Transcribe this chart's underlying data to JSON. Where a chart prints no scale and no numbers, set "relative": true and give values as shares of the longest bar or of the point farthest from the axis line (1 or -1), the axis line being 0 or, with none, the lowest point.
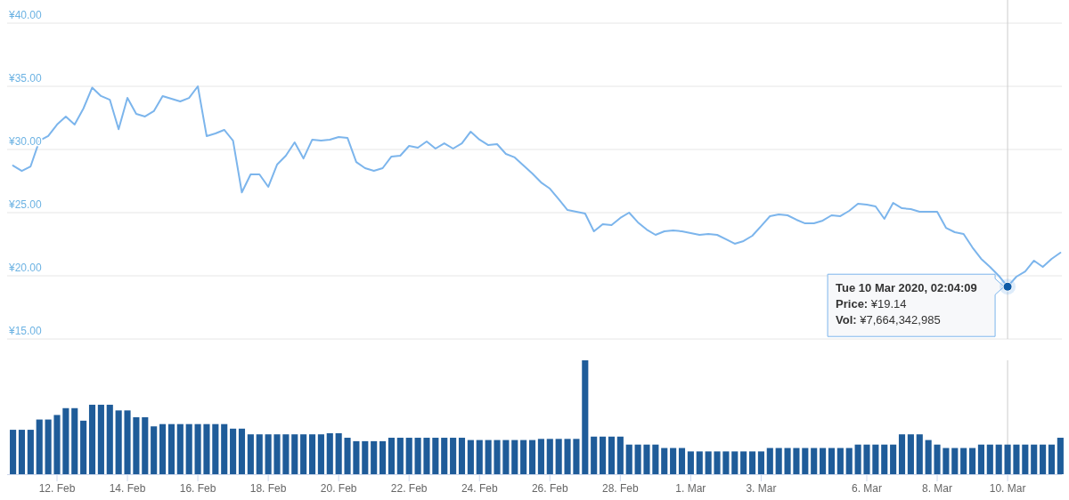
{
  "chart_data": [
    {
      "type": "line",
      "xlim": [
        "2020-02-10T14:00",
        "2020-03-11T13:00"
      ],
      "ylim": [
        15,
        40
      ],
      "yticks": [
        {
          "value": 15,
          "label": "¥15.00"
        },
        {
          "value": 20,
          "label": "¥20.00"
        },
        {
          "value": 25,
          "label": "¥25.00"
        },
        {
          "value": 30,
          "label": "¥30.00"
        },
        {
          "value": 35,
          "label": "¥35.00"
        },
        {
          "value": 40,
          "label": "¥40.00"
        }
      ],
      "tick_labels": "y",
      "grid": "y",
      "x": [
        "2020-02-10T18:00",
        "2020-02-11T00:00",
        "2020-02-11T06:00",
        "2020-02-11T12:00",
        "2020-02-11T18:00",
        "2020-02-12T00:00",
        "2020-02-12T06:00",
        "2020-02-12T12:00",
        "2020-02-12T18:00",
        "2020-02-13T00:00",
        "2020-02-13T06:00",
        "2020-02-13T12:00",
        "2020-02-13T18:00",
        "2020-02-14T00:00",
        "2020-02-14T06:00",
        "2020-02-14T12:00",
        "2020-02-14T18:00",
        "2020-02-15T00:00",
        "2020-02-15T06:00",
        "2020-02-15T12:00",
        "2020-02-15T18:00",
        "2020-02-16T00:00",
        "2020-02-16T06:00",
        "2020-02-16T12:00",
        "2020-02-16T18:00",
        "2020-02-17T00:00",
        "2020-02-17T06:00",
        "2020-02-17T12:00",
        "2020-02-17T18:00",
        "2020-02-18T00:00",
        "2020-02-18T06:00",
        "2020-02-18T12:00",
        "2020-02-18T18:00",
        "2020-02-19T00:00",
        "2020-02-19T06:00",
        "2020-02-19T12:00",
        "2020-02-19T18:00",
        "2020-02-20T00:00",
        "2020-02-20T06:00",
        "2020-02-20T12:00",
        "2020-02-20T18:00",
        "2020-02-21T00:00",
        "2020-02-21T06:00",
        "2020-02-21T12:00",
        "2020-02-21T18:00",
        "2020-02-22T00:00",
        "2020-02-22T06:00",
        "2020-02-22T12:00",
        "2020-02-22T18:00",
        "2020-02-23T00:00",
        "2020-02-23T06:00",
        "2020-02-23T12:00",
        "2020-02-23T18:00",
        "2020-02-24T00:00",
        "2020-02-24T06:00",
        "2020-02-24T12:00",
        "2020-02-24T18:00",
        "2020-02-25T00:00",
        "2020-02-25T06:00",
        "2020-02-25T12:00",
        "2020-02-25T18:00",
        "2020-02-26T00:00",
        "2020-02-26T06:00",
        "2020-02-26T12:00",
        "2020-02-26T18:00",
        "2020-02-27T00:00",
        "2020-02-27T06:00",
        "2020-02-27T12:00",
        "2020-02-27T18:00",
        "2020-02-28T00:00",
        "2020-02-28T06:00",
        "2020-02-28T12:00",
        "2020-02-28T18:00",
        "2020-02-29T00:00",
        "2020-02-29T06:00",
        "2020-02-29T12:00",
        "2020-02-29T18:00",
        "2020-03-01T00:00",
        "2020-03-01T06:00",
        "2020-03-01T12:00",
        "2020-03-01T18:00",
        "2020-03-02T00:00",
        "2020-03-02T06:00",
        "2020-03-02T12:00",
        "2020-03-02T18:00",
        "2020-03-03T00:00",
        "2020-03-03T06:00",
        "2020-03-03T12:00",
        "2020-03-03T18:00",
        "2020-03-04T00:00",
        "2020-03-04T06:00",
        "2020-03-04T12:00",
        "2020-03-04T18:00",
        "2020-03-05T00:00",
        "2020-03-05T06:00",
        "2020-03-05T12:00",
        "2020-03-05T18:00",
        "2020-03-06T00:00",
        "2020-03-06T06:00",
        "2020-03-06T12:00",
        "2020-03-06T18:00",
        "2020-03-07T00:00",
        "2020-03-07T06:00",
        "2020-03-07T12:00",
        "2020-03-07T18:00",
        "2020-03-08T00:00",
        "2020-03-08T06:00",
        "2020-03-08T12:00",
        "2020-03-08T18:00",
        "2020-03-09T00:00",
        "2020-03-09T06:00",
        "2020-03-09T12:00",
        "2020-03-09T18:00",
        "2020-03-10T00:00",
        "2020-03-10T06:00",
        "2020-03-10T12:00",
        "2020-03-10T18:00",
        "2020-03-11T00:00",
        "2020-03-11T06:00",
        "2020-03-11T12:00"
      ],
      "series": [
        {
          "color": "#7cb5ec",
          "values": [
            28.73,
            28.3,
            28.66,
            30.7,
            31.06,
            31.97,
            32.61,
            31.97,
            33.24,
            34.9,
            34.23,
            33.94,
            31.6,
            34.08,
            32.82,
            32.61,
            33.03,
            34.23,
            34.01,
            33.8,
            34.08,
            35.0,
            31.06,
            31.27,
            31.55,
            30.7,
            26.6,
            28.03,
            28.03,
            27.04,
            28.8,
            29.51,
            30.56,
            29.29,
            30.78,
            30.7,
            30.78,
            30.99,
            30.92,
            29.01,
            28.52,
            28.31,
            28.52,
            29.44,
            29.51,
            30.28,
            30.14,
            30.63,
            30.07,
            30.49,
            30.07,
            30.49,
            31.41,
            30.78,
            30.35,
            30.42,
            29.65,
            29.37,
            28.73,
            28.1,
            27.39,
            26.9,
            26.06,
            25.21,
            25.07,
            24.93,
            23.52,
            24.08,
            24.01,
            24.58,
            25.0,
            24.23,
            23.66,
            23.24,
            23.52,
            23.59,
            23.52,
            23.38,
            23.24,
            23.31,
            23.24,
            22.89,
            22.54,
            22.75,
            23.17,
            23.94,
            24.72,
            24.86,
            24.79,
            24.44,
            24.15,
            24.15,
            24.37,
            24.79,
            24.72,
            25.14,
            25.7,
            25.63,
            25.49,
            24.51,
            25.77,
            25.35,
            25.28,
            25.07,
            25.07,
            25.07,
            23.8,
            23.45,
            23.31,
            22.25,
            21.34,
            20.7,
            20.0,
            19.14,
            19.93,
            20.35,
            21.2,
            20.7,
            21.34,
            21.83
          ]
        }
      ],
      "ref_lines": [
        {
          "axis": "x",
          "value": "2020-03-10T00:00",
          "color": "#cccccc"
        }
      ],
      "annotations": [
        {
          "text": "Tue 10 Mar 2020, 02:04:09",
          "x": "2020-03-10T00:00",
          "y": 19.14
        },
        "Price: ¥19.14",
        "Vol: ¥7,664,342,985"
      ]
    },
    {
      "type": "bar",
      "relative": true,
      "xlim": [
        "2020-02-10T14:00",
        "2020-03-11T13:00"
      ],
      "xticks": [
        {
          "value": "2020-02-12",
          "label": "12. Feb"
        },
        {
          "value": "2020-02-14",
          "label": "14. Feb"
        },
        {
          "value": "2020-02-16",
          "label": "16. Feb"
        },
        {
          "value": "2020-02-18",
          "label": "18. Feb"
        },
        {
          "value": "2020-02-20",
          "label": "20. Feb"
        },
        {
          "value": "2020-02-22",
          "label": "22. Feb"
        },
        {
          "value": "2020-02-24",
          "label": "24. Feb"
        },
        {
          "value": "2020-02-26",
          "label": "26. Feb"
        },
        {
          "value": "2020-02-28",
          "label": "28. Feb"
        },
        {
          "value": "2020-03-01",
          "label": "1. Mar"
        },
        {
          "value": "2020-03-03",
          "label": "3. Mar"
        },
        {
          "value": "2020-03-06",
          "label": "6. Mar"
        },
        {
          "value": "2020-03-08",
          "label": "8. Mar"
        },
        {
          "value": "2020-03-10",
          "label": "10. Mar"
        }
      ],
      "x": [
        "2020-02-10T18:00",
        "2020-02-11T00:00",
        "2020-02-11T06:00",
        "2020-02-11T12:00",
        "2020-02-11T18:00",
        "2020-02-12T00:00",
        "2020-02-12T06:00",
        "2020-02-12T12:00",
        "2020-02-12T18:00",
        "2020-02-13T00:00",
        "2020-02-13T06:00",
        "2020-02-13T12:00",
        "2020-02-13T18:00",
        "2020-02-14T00:00",
        "2020-02-14T06:00",
        "2020-02-14T12:00",
        "2020-02-14T18:00",
        "2020-02-15T00:00",
        "2020-02-15T06:00",
        "2020-02-15T12:00",
        "2020-02-15T18:00",
        "2020-02-16T00:00",
        "2020-02-16T06:00",
        "2020-02-16T12:00",
        "2020-02-16T18:00",
        "2020-02-17T00:00",
        "2020-02-17T06:00",
        "2020-02-17T12:00",
        "2020-02-17T18:00",
        "2020-02-18T00:00",
        "2020-02-18T06:00",
        "2020-02-18T12:00",
        "2020-02-18T18:00",
        "2020-02-19T00:00",
        "2020-02-19T06:00",
        "2020-02-19T12:00",
        "2020-02-19T18:00",
        "2020-02-20T00:00",
        "2020-02-20T06:00",
        "2020-02-20T12:00",
        "2020-02-20T18:00",
        "2020-02-21T00:00",
        "2020-02-21T06:00",
        "2020-02-21T12:00",
        "2020-02-21T18:00",
        "2020-02-22T00:00",
        "2020-02-22T06:00",
        "2020-02-22T12:00",
        "2020-02-22T18:00",
        "2020-02-23T00:00",
        "2020-02-23T06:00",
        "2020-02-23T12:00",
        "2020-02-23T18:00",
        "2020-02-24T00:00",
        "2020-02-24T06:00",
        "2020-02-24T12:00",
        "2020-02-24T18:00",
        "2020-02-25T00:00",
        "2020-02-25T06:00",
        "2020-02-25T12:00",
        "2020-02-25T18:00",
        "2020-02-26T00:00",
        "2020-02-26T06:00",
        "2020-02-26T12:00",
        "2020-02-26T18:00",
        "2020-02-27T00:00",
        "2020-02-27T06:00",
        "2020-02-27T12:00",
        "2020-02-27T18:00",
        "2020-02-28T00:00",
        "2020-02-28T06:00",
        "2020-02-28T12:00",
        "2020-02-28T18:00",
        "2020-02-29T00:00",
        "2020-02-29T06:00",
        "2020-02-29T12:00",
        "2020-02-29T18:00",
        "2020-03-01T00:00",
        "2020-03-01T06:00",
        "2020-03-01T12:00",
        "2020-03-01T18:00",
        "2020-03-02T00:00",
        "2020-03-02T06:00",
        "2020-03-02T12:00",
        "2020-03-02T18:00",
        "2020-03-03T00:00",
        "2020-03-03T06:00",
        "2020-03-03T12:00",
        "2020-03-03T18:00",
        "2020-03-04T00:00",
        "2020-03-04T06:00",
        "2020-03-04T12:00",
        "2020-03-04T18:00",
        "2020-03-05T00:00",
        "2020-03-05T06:00",
        "2020-03-05T12:00",
        "2020-03-05T18:00",
        "2020-03-06T00:00",
        "2020-03-06T06:00",
        "2020-03-06T12:00",
        "2020-03-06T18:00",
        "2020-03-07T00:00",
        "2020-03-07T06:00",
        "2020-03-07T12:00",
        "2020-03-07T18:00",
        "2020-03-08T00:00",
        "2020-03-08T06:00",
        "2020-03-08T12:00",
        "2020-03-08T18:00",
        "2020-03-09T00:00",
        "2020-03-09T06:00",
        "2020-03-09T12:00",
        "2020-03-09T18:00",
        "2020-03-10T00:00",
        "2020-03-10T06:00",
        "2020-03-10T12:00",
        "2020-03-10T18:00",
        "2020-03-11T00:00",
        "2020-03-11T06:00",
        "2020-03-11T12:00"
      ],
      "series": [
        {
          "color": "#1f5c99",
          "values": [
            0.39,
            0.39,
            0.39,
            0.48,
            0.48,
            0.52,
            0.58,
            0.58,
            0.47,
            0.61,
            0.61,
            0.61,
            0.56,
            0.56,
            0.5,
            0.5,
            0.42,
            0.44,
            0.44,
            0.44,
            0.44,
            0.44,
            0.44,
            0.44,
            0.44,
            0.4,
            0.4,
            0.35,
            0.35,
            0.35,
            0.35,
            0.35,
            0.35,
            0.35,
            0.35,
            0.35,
            0.36,
            0.36,
            0.32,
            0.29,
            0.29,
            0.29,
            0.29,
            0.32,
            0.32,
            0.32,
            0.32,
            0.32,
            0.32,
            0.32,
            0.32,
            0.32,
            0.3,
            0.3,
            0.3,
            0.3,
            0.3,
            0.3,
            0.3,
            0.3,
            0.31,
            0.31,
            0.31,
            0.31,
            0.31,
            1,
            0.33,
            0.33,
            0.33,
            0.33,
            0.26,
            0.26,
            0.26,
            0.26,
            0.23,
            0.23,
            0.23,
            0.2,
            0.2,
            0.2,
            0.2,
            0.2,
            0.2,
            0.2,
            0.2,
            0.2,
            0.23,
            0.23,
            0.23,
            0.23,
            0.23,
            0.23,
            0.23,
            0.23,
            0.23,
            0.23,
            0.26,
            0.26,
            0.26,
            0.26,
            0.26,
            0.35,
            0.35,
            0.35,
            0.3,
            0.26,
            0.23,
            0.23,
            0.23,
            0.23,
            0.26,
            0.26,
            0.26,
            0.26,
            0.26,
            0.26,
            0.26,
            0.26,
            0.26,
            0.32
          ]
        }
      ],
      "ref_lines": [
        {
          "axis": "x",
          "value": "2020-03-10T00:00",
          "color": "#cccccc"
        }
      ]
    }
  ]
}
